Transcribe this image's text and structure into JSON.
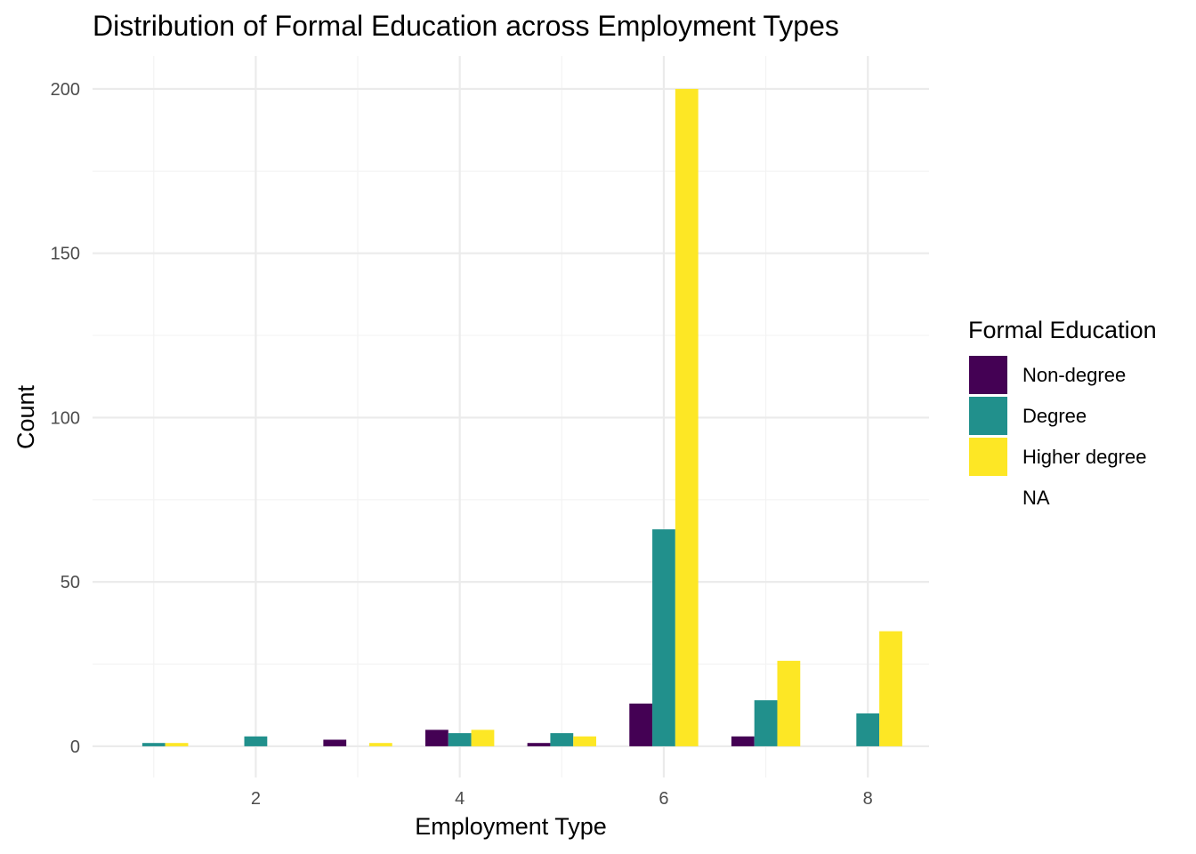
{
  "chart_data": {
    "type": "bar",
    "title": "Distribution of Formal Education across Employment Types",
    "xlabel": "Employment Type",
    "ylabel": "Count",
    "xlim": [
      0.4,
      8.6
    ],
    "ylim": [
      -9.5,
      210
    ],
    "x_ticks": [
      2,
      4,
      6,
      8
    ],
    "y_ticks": [
      0,
      50,
      100,
      150,
      200
    ],
    "grid": true,
    "legend_position": "right",
    "legend_title": "Formal Education",
    "legend_entries": [
      "Non-degree",
      "Degree",
      "Higher degree",
      "NA"
    ],
    "categories": [
      1,
      2,
      3,
      4,
      5,
      6,
      7,
      8
    ],
    "series": [
      {
        "name": "Non-degree",
        "color": "#440154",
        "values": [
          0,
          0,
          2,
          5,
          1,
          13,
          3,
          0
        ]
      },
      {
        "name": "Degree",
        "color": "#21908C",
        "values": [
          1,
          3,
          0,
          4,
          4,
          66,
          14,
          10
        ]
      },
      {
        "name": "Higher degree",
        "color": "#FDE725",
        "values": [
          1,
          0,
          1,
          5,
          3,
          200,
          26,
          35
        ]
      },
      {
        "name": "NA",
        "color": "#ffffff",
        "values": [
          0,
          0,
          0,
          0,
          0,
          0,
          0,
          0
        ]
      }
    ]
  }
}
